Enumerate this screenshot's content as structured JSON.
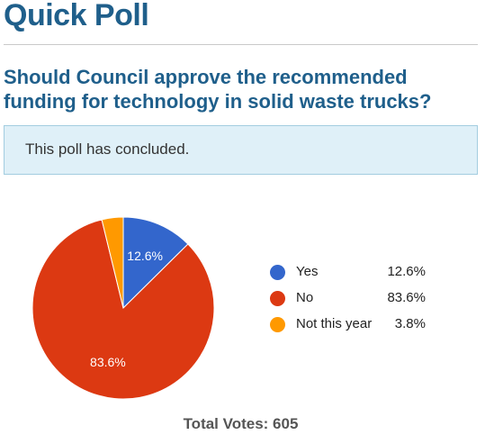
{
  "poll": {
    "heading": "Quick Poll",
    "question": "Should Council approve the recommended funding for technology in solid waste trucks?",
    "status_message": "This poll has concluded.",
    "total_votes": "Total Votes: 605"
  },
  "chart_data": {
    "type": "pie",
    "categories": [
      "Yes",
      "No",
      "Not this year"
    ],
    "values": [
      12.6,
      83.6,
      3.8
    ],
    "value_labels": [
      "12.6%",
      "83.6%",
      "3.8%"
    ],
    "slice_labels": [
      "12.6%",
      "83.6%",
      ""
    ],
    "colors": [
      "#3366cc",
      "#dc3912",
      "#ff9900"
    ],
    "legend_position": "right"
  }
}
